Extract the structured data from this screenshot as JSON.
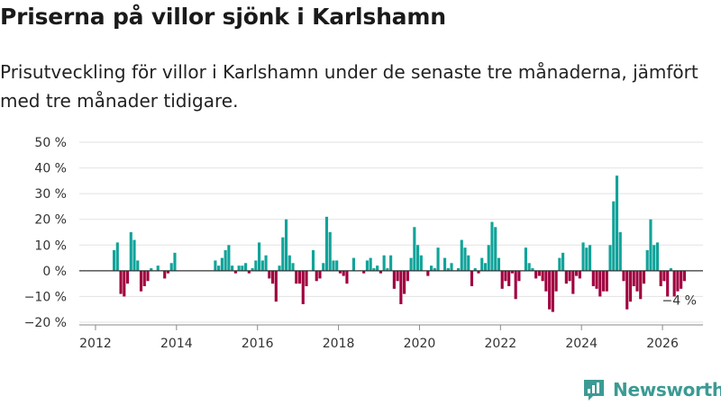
{
  "header": {
    "title": "Priserna på villor sjönk i Karlshamn",
    "subtitle": "Prisutveckling för villor i Karlshamn under de senaste tre månaderna, jämfört med tre månader tidigare."
  },
  "brand": {
    "name": "Newsworthy",
    "icon": "newsworthy-logo-icon"
  },
  "colors": {
    "positive": "#11a39a",
    "negative": "#a0003f",
    "grid": "#e2e2e2",
    "axis": "#333333",
    "brand": "#3b9b94"
  },
  "chart_data": {
    "type": "bar",
    "title": "Priserna på villor sjönk i Karlshamn",
    "xlabel": "",
    "ylabel": "",
    "ylim": [
      -20,
      50
    ],
    "xlim": [
      2011.6,
      2027.0
    ],
    "y_ticks": [
      -20,
      -10,
      0,
      10,
      20,
      30,
      40,
      50
    ],
    "y_tick_labels": [
      "−20 %",
      "−10 %",
      "0 %",
      "10 %",
      "20 %",
      "30 %",
      "40 %",
      "50 %"
    ],
    "x_ticks": [
      2012,
      2014,
      2016,
      2018,
      2020,
      2022,
      2024,
      2026
    ],
    "x_tick_labels": [
      "2012",
      "2014",
      "2016",
      "2018",
      "2020",
      "2022",
      "2024",
      "2026"
    ],
    "start": "2012-06",
    "frequency": "monthly",
    "values": [
      8,
      11,
      -9,
      -10,
      -5,
      15,
      12,
      4,
      -8,
      -6,
      -4,
      1,
      0,
      2,
      0,
      -3,
      -1,
      3,
      7,
      0,
      0,
      0,
      0,
      0,
      0,
      0,
      0,
      0,
      0,
      0,
      4,
      2,
      5,
      8,
      10,
      2,
      -1,
      2,
      2,
      3,
      -1,
      1,
      4,
      11,
      4,
      6,
      -3,
      -5,
      -12,
      2,
      13,
      20,
      6,
      3,
      -5,
      -5,
      -13,
      -6,
      0,
      8,
      -4,
      -3,
      3,
      21,
      15,
      4,
      4,
      -1,
      -2,
      -5,
      0,
      5,
      0,
      0,
      -1,
      4,
      5,
      1,
      2,
      -1,
      6,
      1,
      6,
      -7,
      -4,
      -13,
      -9,
      -4,
      5,
      17,
      10,
      6,
      0,
      -2,
      2,
      1,
      9,
      0,
      5,
      1,
      3,
      0,
      1,
      12,
      9,
      6,
      -6,
      1,
      -1,
      5,
      3,
      10,
      19,
      17,
      5,
      -7,
      -4,
      -6,
      -1,
      -11,
      -4,
      0,
      9,
      3,
      1,
      -3,
      -2,
      -4,
      -8,
      -15,
      -16,
      -8,
      5,
      7,
      -5,
      -4,
      -9,
      -2,
      -3,
      11,
      9,
      10,
      -6,
      -7,
      -10,
      -8,
      -8,
      10,
      27,
      37,
      15,
      -4,
      -15,
      -12,
      -6,
      -8,
      -11,
      -5,
      8,
      20,
      10,
      11,
      -6,
      -4,
      -10,
      1,
      -10,
      -8,
      -7,
      -4
    ],
    "annotations": [
      {
        "text": "−4 %",
        "x": "2026-03",
        "y": -4
      }
    ]
  }
}
